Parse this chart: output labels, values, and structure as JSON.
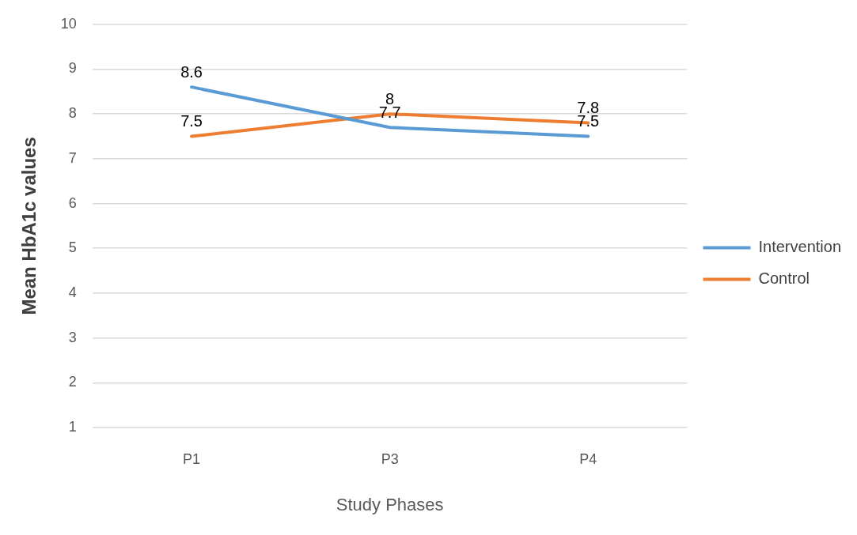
{
  "chart_data": {
    "type": "line",
    "xlabel": "Study Phases",
    "ylabel": "Mean HbA1c values",
    "categories": [
      "P1",
      "P3",
      "P4"
    ],
    "series": [
      {
        "name": "Intervention",
        "color": "#5b9bd5",
        "values": [
          8.6,
          7.7,
          7.5
        ]
      },
      {
        "name": "Control",
        "color": "#ed7d31",
        "values": [
          7.5,
          8,
          7.8
        ]
      }
    ],
    "ylim": [
      1,
      10
    ],
    "yticks": [
      1,
      2,
      3,
      4,
      5,
      6,
      7,
      8,
      9,
      10
    ],
    "grid": "y",
    "legend": "right",
    "marker": "none",
    "line_style": "solid",
    "data_labels": true
  }
}
